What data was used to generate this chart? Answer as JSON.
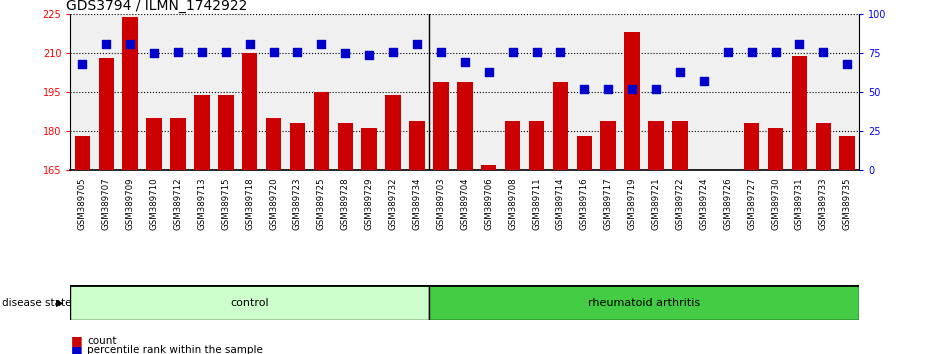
{
  "title": "GDS3794 / ILMN_1742922",
  "samples": [
    "GSM389705",
    "GSM389707",
    "GSM389709",
    "GSM389710",
    "GSM389712",
    "GSM389713",
    "GSM389715",
    "GSM389718",
    "GSM389720",
    "GSM389723",
    "GSM389725",
    "GSM389728",
    "GSM389729",
    "GSM389732",
    "GSM389734",
    "GSM389703",
    "GSM389704",
    "GSM389706",
    "GSM389708",
    "GSM389711",
    "GSM389714",
    "GSM389716",
    "GSM389717",
    "GSM389719",
    "GSM389721",
    "GSM389722",
    "GSM389724",
    "GSM389726",
    "GSM389727",
    "GSM389730",
    "GSM389731",
    "GSM389733",
    "GSM389735"
  ],
  "counts": [
    178,
    208,
    224,
    185,
    185,
    194,
    194,
    210,
    185,
    183,
    195,
    183,
    181,
    194,
    184,
    199,
    199,
    167,
    184,
    184,
    199,
    178,
    184,
    218,
    184,
    184,
    165,
    165,
    183,
    181,
    209,
    183,
    178
  ],
  "percentiles": [
    68,
    81,
    81,
    75,
    76,
    76,
    76,
    81,
    76,
    76,
    81,
    75,
    74,
    76,
    81,
    76,
    69,
    63,
    76,
    76,
    76,
    52,
    52,
    52,
    52,
    63,
    57,
    76,
    76,
    76,
    81,
    76,
    68
  ],
  "n_control": 15,
  "ylim_left": [
    165,
    225
  ],
  "ylim_right": [
    0,
    100
  ],
  "yticks_left": [
    165,
    180,
    195,
    210,
    225
  ],
  "yticks_right": [
    0,
    25,
    50,
    75,
    100
  ],
  "bar_color": "#cc0000",
  "dot_color": "#0000cc",
  "control_color": "#ccffcc",
  "ra_color": "#44cc44",
  "bar_width": 0.65,
  "dot_size": 28,
  "baseline": 165,
  "bg_color": "#f0f0f0",
  "title_fontsize": 10,
  "tick_fontsize": 7,
  "label_fontsize": 8
}
